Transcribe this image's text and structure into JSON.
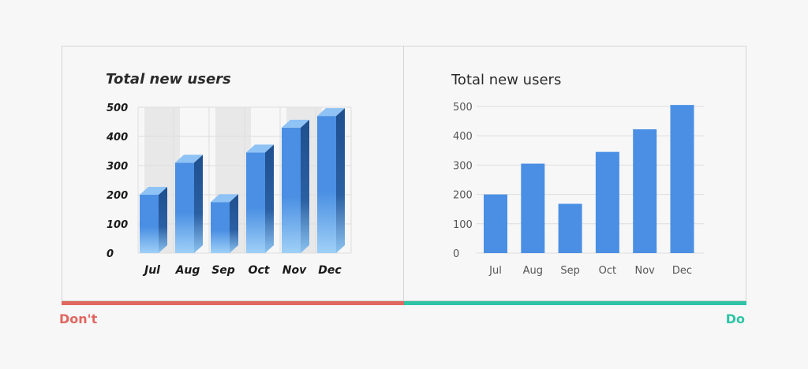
{
  "colors": {
    "dont": "#e0675f",
    "do": "#2ec4a5",
    "bar_flat": "#4a8fe3",
    "bar_front": "#4a8fe3",
    "bar_side": "#1f4f8e",
    "bar_top": "#8fc2f5",
    "grid": "#dedede",
    "band": "#e8e8e8",
    "title": "#2b2b2b",
    "axis_text_dont": "#1a1a1a",
    "axis_text_do": "#555555"
  },
  "labels": {
    "dont": "Don't",
    "do": "Do"
  },
  "chart_data": [
    {
      "id": "dont",
      "type": "bar",
      "style": "3d",
      "title": "Total new users",
      "categories": [
        "Jul",
        "Aug",
        "Sep",
        "Oct",
        "Nov",
        "Dec"
      ],
      "values": [
        200,
        310,
        175,
        345,
        430,
        470
      ],
      "yticks": [
        0,
        100,
        200,
        300,
        400,
        500
      ],
      "ylim": [
        0,
        500
      ],
      "grid": true,
      "alternating_bands": true
    },
    {
      "id": "do",
      "type": "bar",
      "style": "flat",
      "title": "Total new users",
      "categories": [
        "Jul",
        "Aug",
        "Sep",
        "Oct",
        "Nov",
        "Dec"
      ],
      "values": [
        200,
        305,
        168,
        345,
        422,
        505
      ],
      "yticks": [
        0,
        100,
        200,
        300,
        400,
        500
      ],
      "ylim": [
        0,
        500
      ],
      "grid": true
    }
  ]
}
